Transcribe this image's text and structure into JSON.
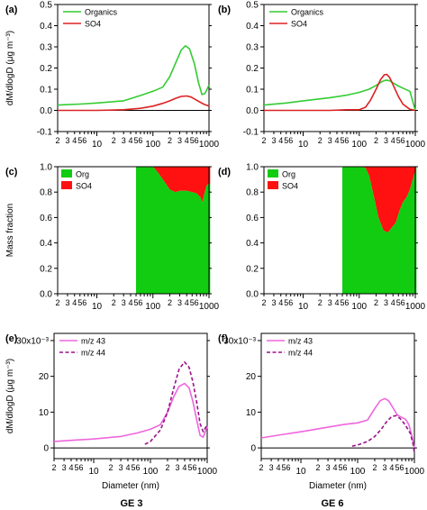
{
  "figure": {
    "footers": [
      "GE 3",
      "GE 6"
    ]
  },
  "colors": {
    "organics": "#33cc33",
    "so4": "#dd2222",
    "org_fill": "#11cc11",
    "so4_fill": "#ff1111",
    "mz43": "#ee66dd",
    "mz44": "#991188"
  },
  "chart_data": [
    {
      "id": "a",
      "panel_label": "(a)",
      "type": "line",
      "xscale": "log",
      "xlim": [
        2,
        1000
      ],
      "ylim": [
        -0.1,
        0.5
      ],
      "y_ticks": [
        -0.1,
        0.0,
        0.1,
        0.2,
        0.3,
        0.4,
        0.5
      ],
      "ylabel": "dM/dlogD (μg m⁻³)",
      "legend": "top-left",
      "series": [
        {
          "name": "Organics",
          "x": [
            2,
            5,
            10,
            30,
            60,
            100,
            150,
            200,
            260,
            320,
            380,
            450,
            550,
            650,
            750,
            850,
            1000
          ],
          "y": [
            0.025,
            0.03,
            0.035,
            0.045,
            0.07,
            0.09,
            0.11,
            0.16,
            0.23,
            0.285,
            0.305,
            0.29,
            0.22,
            0.13,
            0.075,
            0.08,
            0.12
          ]
        },
        {
          "name": "SO4",
          "x": [
            2,
            10,
            30,
            60,
            100,
            150,
            200,
            260,
            320,
            400,
            480,
            600,
            800,
            1000
          ],
          "y": [
            0.0,
            0.0,
            0.003,
            0.01,
            0.02,
            0.033,
            0.045,
            0.058,
            0.066,
            0.068,
            0.063,
            0.048,
            0.03,
            0.02
          ]
        }
      ]
    },
    {
      "id": "b",
      "panel_label": "(b)",
      "type": "line",
      "xscale": "log",
      "xlim": [
        2,
        1000
      ],
      "ylim": [
        -0.1,
        0.5
      ],
      "y_ticks": [
        -0.1,
        0.0,
        0.1,
        0.2,
        0.3,
        0.4,
        0.5
      ],
      "legend": "top-left",
      "series": [
        {
          "name": "Organics",
          "x": [
            2,
            5,
            10,
            30,
            60,
            100,
            150,
            200,
            250,
            300,
            350,
            400,
            500,
            600,
            800,
            1000
          ],
          "y": [
            0.025,
            0.035,
            0.045,
            0.06,
            0.072,
            0.085,
            0.1,
            0.118,
            0.135,
            0.143,
            0.14,
            0.13,
            0.115,
            0.105,
            0.09,
            0.0
          ]
        },
        {
          "name": "SO4",
          "x": [
            2,
            30,
            60,
            100,
            130,
            160,
            200,
            240,
            280,
            310,
            350,
            420,
            500,
            600,
            800,
            1000
          ],
          "y": [
            0.0,
            0.0,
            0.003,
            0.003,
            0.015,
            0.05,
            0.1,
            0.145,
            0.168,
            0.17,
            0.155,
            0.11,
            0.065,
            0.03,
            0.005,
            0.0
          ]
        }
      ]
    },
    {
      "id": "c",
      "panel_label": "(c)",
      "type": "area",
      "xscale": "log",
      "xlim": [
        2,
        1000
      ],
      "ylim": [
        0,
        1.0
      ],
      "y_ticks": [
        0.0,
        0.2,
        0.4,
        0.6,
        0.8,
        1.0
      ],
      "ylabel": "Mass fraction",
      "legend": "top-left",
      "series": [
        {
          "name": "Org",
          "x": [
            50,
            100,
            120,
            150,
            200,
            250,
            300,
            400,
            500,
            600,
            700,
            760,
            820,
            900,
            1000,
            1050
          ],
          "y": [
            1.0,
            1.0,
            0.96,
            0.9,
            0.82,
            0.8,
            0.81,
            0.81,
            0.8,
            0.79,
            0.76,
            0.72,
            0.78,
            0.85,
            0.87,
            0.86
          ]
        },
        {
          "name": "SO4"
        }
      ]
    },
    {
      "id": "d",
      "panel_label": "(d)",
      "type": "area",
      "xscale": "log",
      "xlim": [
        2,
        1000
      ],
      "ylim": [
        0,
        1.0
      ],
      "y_ticks": [
        0.0,
        0.2,
        0.4,
        0.6,
        0.8,
        1.0
      ],
      "legend": "top-left",
      "series": [
        {
          "name": "Org",
          "x": [
            50,
            100,
            130,
            150,
            180,
            220,
            270,
            320,
            380,
            450,
            520,
            600,
            700,
            800,
            900,
            1000,
            1050
          ],
          "y": [
            1.0,
            1.0,
            0.99,
            0.93,
            0.78,
            0.6,
            0.5,
            0.48,
            0.52,
            0.56,
            0.65,
            0.72,
            0.76,
            0.82,
            0.9,
            0.97,
            1.0
          ]
        },
        {
          "name": "SO4"
        }
      ]
    },
    {
      "id": "e",
      "panel_label": "(e)",
      "type": "line",
      "xscale": "log",
      "xlim": [
        2,
        1000
      ],
      "ylim": [
        -0.003,
        0.032
      ],
      "y_ticks": [
        0,
        0.01,
        0.02,
        0.03
      ],
      "y_tick_labels": [
        "0",
        "10",
        "20",
        "30x10⁻³"
      ],
      "ylabel": "dM/dlogD (μg m⁻³)",
      "xlabel": "Diameter (nm)",
      "legend": "top-left",
      "series": [
        {
          "name": "m/z 43",
          "x": [
            2,
            5,
            10,
            30,
            60,
            100,
            150,
            200,
            260,
            320,
            400,
            480,
            560,
            650,
            750,
            850,
            1000
          ],
          "y": [
            0.0018,
            0.0022,
            0.0025,
            0.0032,
            0.0042,
            0.0052,
            0.0065,
            0.01,
            0.0145,
            0.0172,
            0.018,
            0.0168,
            0.013,
            0.008,
            0.0035,
            0.003,
            0.006
          ]
        },
        {
          "name": "m/z 44",
          "x": [
            80,
            100,
            150,
            200,
            260,
            320,
            400,
            480,
            560,
            650,
            750,
            850,
            1000
          ],
          "y": [
            0.001,
            0.0018,
            0.005,
            0.01,
            0.017,
            0.022,
            0.024,
            0.0225,
            0.0185,
            0.013,
            0.0068,
            0.0045,
            0.0065
          ]
        }
      ]
    },
    {
      "id": "f",
      "panel_label": "(f)",
      "type": "line",
      "xscale": "log",
      "xlim": [
        2,
        1000
      ],
      "ylim": [
        -0.003,
        0.032
      ],
      "y_ticks": [
        0,
        0.01,
        0.02,
        0.03
      ],
      "y_tick_labels": [
        "0",
        "10",
        "20",
        "30x10⁻³"
      ],
      "xlabel": "Diameter (nm)",
      "legend": "top-left",
      "series": [
        {
          "name": "m/z 43",
          "x": [
            2,
            5,
            10,
            30,
            60,
            100,
            150,
            200,
            250,
            300,
            350,
            420,
            500,
            600,
            700,
            800,
            900,
            1000
          ],
          "y": [
            0.0028,
            0.0038,
            0.0045,
            0.0058,
            0.0066,
            0.007,
            0.0078,
            0.011,
            0.0132,
            0.0138,
            0.0132,
            0.0112,
            0.0092,
            0.0085,
            0.008,
            0.0065,
            0.0035,
            0.0
          ]
        },
        {
          "name": "m/z 44",
          "x": [
            80,
            100,
            150,
            200,
            260,
            320,
            400,
            480,
            560,
            650,
            750,
            850,
            950,
            1000
          ],
          "y": [
            0.0005,
            0.0008,
            0.0018,
            0.0032,
            0.0052,
            0.0072,
            0.0088,
            0.009,
            0.0082,
            0.007,
            0.0055,
            0.004,
            0.001,
            -0.0015
          ]
        }
      ]
    }
  ]
}
